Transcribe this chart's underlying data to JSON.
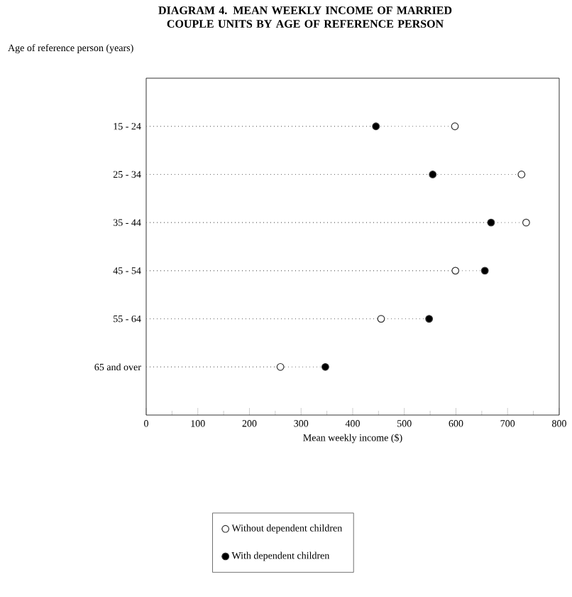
{
  "chart_data": {
    "type": "lollipop",
    "orientation": "horizontal",
    "title": "DIAGRAM 4. MEAN WEEKLY INCOME OF MARRIED COUPLE UNITS BY AGE OF REFERENCE PERSON",
    "ylabel": "Age of reference person (years)",
    "xlabel": "Mean weekly income ($)",
    "categories": [
      "15 - 24",
      "25 - 34",
      "35 - 44",
      "45 - 54",
      "55 - 64",
      "65 and over"
    ],
    "series": [
      {
        "name": "Without dependent children",
        "color": "#ffffff",
        "values": [
          598,
          727,
          736,
          599,
          455,
          260
        ]
      },
      {
        "name": "With dependent children",
        "color": "#000000",
        "values": [
          445,
          555,
          668,
          656,
          548,
          347
        ]
      }
    ],
    "xlim": [
      0,
      800
    ],
    "xticks": [
      0,
      {
        "value": 50,
        "label": null
      },
      100,
      {
        "value": 150,
        "label": null
      },
      200,
      {
        "value": 250,
        "label": null
      },
      300,
      {
        "value": 350,
        "label": null
      },
      400,
      {
        "value": 450,
        "label": null
      },
      500,
      {
        "value": 550,
        "label": null
      },
      600,
      {
        "value": 650,
        "label": null
      },
      700,
      {
        "value": 750,
        "label": null
      },
      800
    ],
    "marker": "circle",
    "line_style": "dotted",
    "legend": "bottom",
    "grid": false
  }
}
